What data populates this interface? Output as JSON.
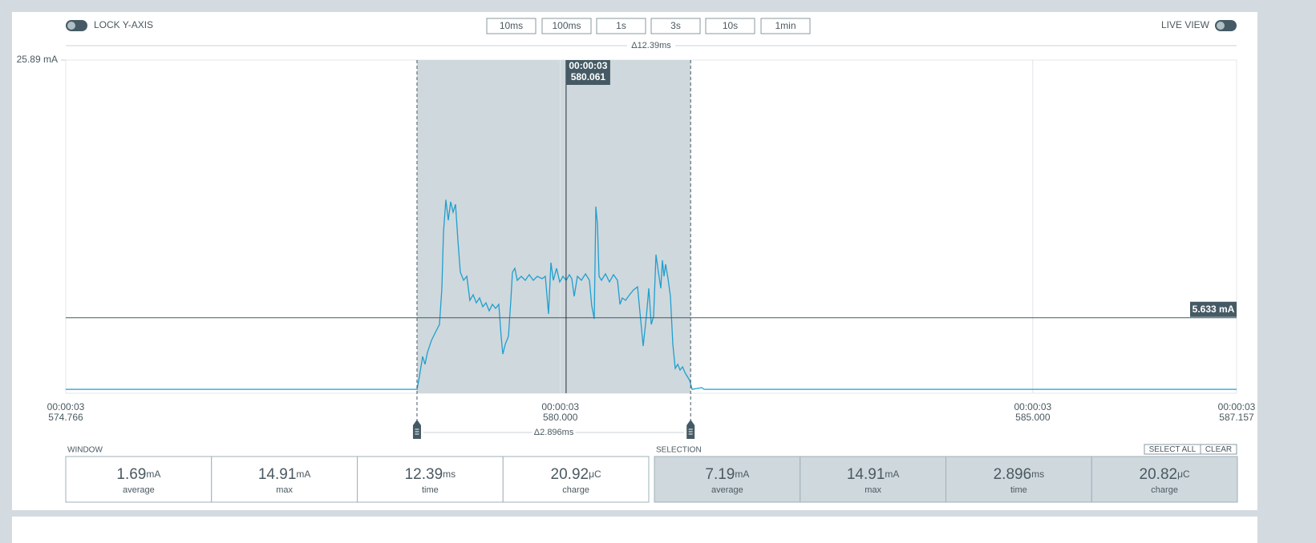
{
  "toolbar": {
    "lock_label": "LOCK Y-AXIS",
    "zoom_buttons": [
      "10ms",
      "100ms",
      "1s",
      "3s",
      "10s",
      "1min"
    ],
    "live_label": "LIVE VIEW"
  },
  "window_delta": "Δ12.39ms",
  "chart_data": {
    "type": "line",
    "color": "#1f9fce",
    "x": [
      574.766,
      578.483,
      578.509,
      578.543,
      578.568,
      578.594,
      578.636,
      578.678,
      578.721,
      578.746,
      578.763,
      578.789,
      578.814,
      578.84,
      578.865,
      578.891,
      578.916,
      578.942,
      578.976,
      579.01,
      579.043,
      579.077,
      579.111,
      579.145,
      579.179,
      579.213,
      579.247,
      579.281,
      579.315,
      579.349,
      579.374,
      579.391,
      579.417,
      579.451,
      579.476,
      579.493,
      579.519,
      579.544,
      579.587,
      579.629,
      579.671,
      579.714,
      579.756,
      579.807,
      579.841,
      579.875,
      579.901,
      579.926,
      579.96,
      579.994,
      580.028,
      580.062,
      580.096,
      580.121,
      580.147,
      580.181,
      580.223,
      580.266,
      580.308,
      580.333,
      580.359,
      580.376,
      580.393,
      580.41,
      580.435,
      580.478,
      580.52,
      580.563,
      580.605,
      580.631,
      580.656,
      580.69,
      580.732,
      580.775,
      580.817,
      580.843,
      580.877,
      580.911,
      580.936,
      580.962,
      580.987,
      581.012,
      581.038,
      581.063,
      581.08,
      581.097,
      581.114,
      581.14,
      581.165,
      581.191,
      581.216,
      581.242,
      581.267,
      581.293,
      581.318,
      581.343,
      581.369,
      581.394,
      581.496,
      581.522,
      587.157
    ],
    "values": [
      0.01,
      0.01,
      1.02,
      2.59,
      1.97,
      2.91,
      3.85,
      4.48,
      5.11,
      7.95,
      12.35,
      14.91,
      13.3,
      14.75,
      13.93,
      14.56,
      11.72,
      9.21,
      8.58,
      8.89,
      7.0,
      7.44,
      6.81,
      7.19,
      6.5,
      6.81,
      6.18,
      6.69,
      6.37,
      6.69,
      4.17,
      2.78,
      3.54,
      4.17,
      7.0,
      9.21,
      9.52,
      8.58,
      8.89,
      8.58,
      9.02,
      8.58,
      8.89,
      8.7,
      8.89,
      5.93,
      9.96,
      8.58,
      9.52,
      8.45,
      8.89,
      8.58,
      9.02,
      8.7,
      7.32,
      8.89,
      8.58,
      9.08,
      8.58,
      6.56,
      5.55,
      14.37,
      12.98,
      8.89,
      8.58,
      9.08,
      8.45,
      9.02,
      8.58,
      6.69,
      7.19,
      7.0,
      7.44,
      7.82,
      8.07,
      6.06,
      3.41,
      5.74,
      7.95,
      5.11,
      5.74,
      10.59,
      9.21,
      7.95,
      10.15,
      8.89,
      9.84,
      8.7,
      7.32,
      3.54,
      1.65,
      1.97,
      1.52,
      1.78,
      1.34,
      1.02,
      0.71,
      0.01,
      0.14,
      0.01,
      0.01
    ],
    "xlim": [
      574.766,
      587.157
    ],
    "xticks": [
      574.766,
      {
        "value": 580,
        "label": "580.000"
      },
      {
        "value": 585,
        "label": "585.000"
      },
      587.157
    ],
    "xtick_times": [
      "00:00:03",
      "00:00:03",
      "00:00:03",
      "00:00:03"
    ],
    "ylim": [
      -0.3,
      25.89
    ],
    "yticks": [
      {
        "value": 25.89,
        "label": "25.89 mA"
      }
    ],
    "grid": true,
    "selection": [
      578.483,
      581.379
    ],
    "selection_delta": "Δ2.896ms",
    "cursor": {
      "time": "00:00:03",
      "value": 580.061
    },
    "hline": {
      "value": 5.633,
      "label": "5.633 mA"
    }
  },
  "window": {
    "label": "WINDOW",
    "stats": [
      {
        "value": 1.69,
        "unit": "mA",
        "name": "average"
      },
      {
        "value": 14.91,
        "unit": "mA",
        "name": "max"
      },
      {
        "value": 12.39,
        "unit": "ms",
        "name": "time"
      },
      {
        "value": 20.92,
        "unit": "μC",
        "name": "charge"
      }
    ]
  },
  "selection_panel": {
    "label": "SELECTION",
    "buttons": [
      "SELECT ALL",
      "CLEAR"
    ],
    "stats": [
      {
        "value": 7.19,
        "unit": "mA",
        "name": "average"
      },
      {
        "value": 14.91,
        "unit": "mA",
        "name": "max"
      },
      {
        "value": 2.896,
        "unit": "ms",
        "name": "time"
      },
      {
        "value": 20.82,
        "unit": "μC",
        "name": "charge"
      }
    ]
  }
}
